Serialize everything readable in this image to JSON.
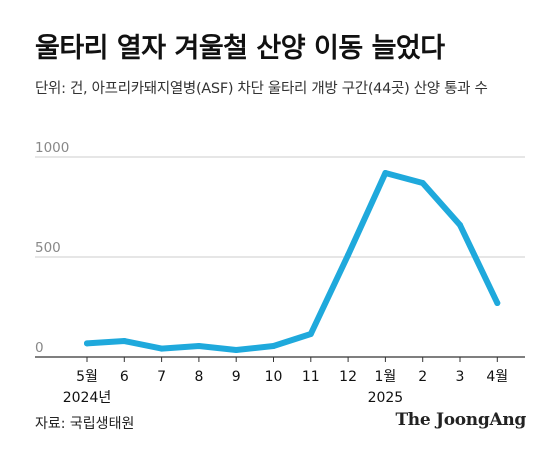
{
  "title": "울타리 열자 겨울철 산양 이동 늘었다",
  "subtitle": "단위: 건, 아프리카돼지열병(ASF) 차단 울타리 개방 구간(44곳) 산양 통과 수",
  "source": "자료: 국립생태원",
  "logo": "The JoongAng",
  "colors": {
    "line": "#1fa9dc",
    "grid": "#bbbbbb",
    "axis": "#333333"
  },
  "chart_data": {
    "type": "line",
    "categories": [
      "5월",
      "6",
      "7",
      "8",
      "9",
      "10",
      "11",
      "12",
      "1월",
      "2",
      "3",
      "4월"
    ],
    "year_labels": [
      {
        "text": "2024년",
        "under": 0
      },
      {
        "text": "2025",
        "under": 8
      }
    ],
    "values": [
      68,
      80,
      42,
      55,
      35,
      55,
      115,
      510,
      920,
      870,
      660,
      270
    ],
    "ylim": [
      0,
      1000
    ],
    "yticks": [
      {
        "value": 0,
        "label": "0"
      },
      {
        "value": 500,
        "label": "500"
      },
      {
        "value": 1000,
        "label": "1000"
      }
    ],
    "grid": true,
    "xlabel": "",
    "ylabel": ""
  }
}
